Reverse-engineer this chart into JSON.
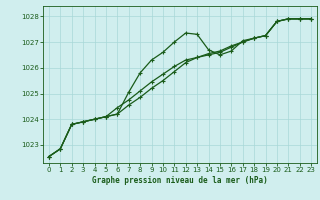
{
  "xlabel": "Graphe pression niveau de la mer (hPa)",
  "ylim": [
    1022.3,
    1028.4
  ],
  "xlim": [
    -0.5,
    23.5
  ],
  "yticks": [
    1023,
    1024,
    1025,
    1026,
    1027,
    1028
  ],
  "xticks": [
    0,
    1,
    2,
    3,
    4,
    5,
    6,
    7,
    8,
    9,
    10,
    11,
    12,
    13,
    14,
    15,
    16,
    17,
    18,
    19,
    20,
    21,
    22,
    23
  ],
  "background_color": "#d0eeee",
  "grid_color": "#a8d8d8",
  "line_color": "#1a5c1a",
  "series1": [
    1022.55,
    1022.85,
    1023.8,
    1023.9,
    1024.0,
    1024.1,
    1024.2,
    1025.05,
    1025.8,
    1026.3,
    1026.6,
    1027.0,
    1027.35,
    1027.3,
    1026.7,
    1026.5,
    1026.65,
    1027.05,
    1027.15,
    1027.25,
    1027.8,
    1027.9,
    1027.9,
    1027.9
  ],
  "series2": [
    1022.55,
    1022.85,
    1023.8,
    1023.9,
    1024.0,
    1024.1,
    1024.45,
    1024.75,
    1025.1,
    1025.45,
    1025.75,
    1026.05,
    1026.3,
    1026.4,
    1026.5,
    1026.6,
    1026.8,
    1027.0,
    1027.15,
    1027.25,
    1027.8,
    1027.9,
    1027.9,
    1027.9
  ],
  "series3": [
    1022.55,
    1022.85,
    1023.8,
    1023.9,
    1024.0,
    1024.1,
    1024.2,
    1024.55,
    1024.85,
    1025.2,
    1025.5,
    1025.85,
    1026.2,
    1026.4,
    1026.55,
    1026.65,
    1026.85,
    1027.0,
    1027.15,
    1027.25,
    1027.8,
    1027.9,
    1027.9,
    1027.9
  ]
}
